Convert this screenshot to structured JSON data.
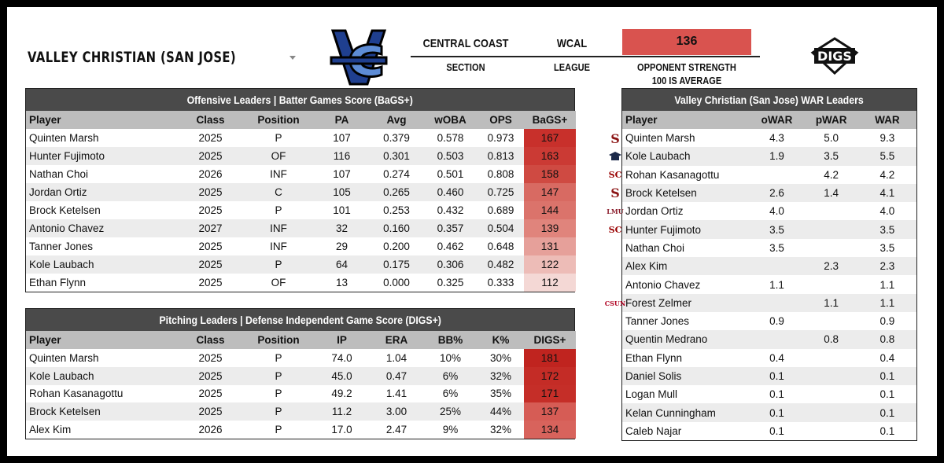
{
  "header": {
    "team_name": "Valley Christian (San Jose)",
    "section_value": "CENTRAL COAST",
    "section_label": "SECTION",
    "league_value": "WCAL",
    "league_label": "LEAGUE",
    "strength_value": "136",
    "strength_label_1": "OPPONENT STRENGTH",
    "strength_label_2": "100 IS AVERAGE",
    "brand_logo_text": "DIGS",
    "colors": {
      "school_blue": "#1f3f8f",
      "strength_red": "#d9534f",
      "title_bar": "#4a4a4a",
      "header_gray": "#bdbdbd"
    }
  },
  "offense": {
    "title": "Offensive Leaders | Batter Games Score (BaGS+)",
    "columns": [
      "Player",
      "Class",
      "Position",
      "PA",
      "Avg",
      "wOBA",
      "OPS",
      "BaGS+"
    ],
    "rows": [
      [
        "Quinten Marsh",
        "2025",
        "P",
        "107",
        "0.379",
        "0.578",
        "0.973",
        "167"
      ],
      [
        "Hunter Fujimoto",
        "2025",
        "OF",
        "116",
        "0.301",
        "0.503",
        "0.813",
        "163"
      ],
      [
        "Nathan Choi",
        "2026",
        "INF",
        "107",
        "0.274",
        "0.501",
        "0.808",
        "158"
      ],
      [
        "Jordan Ortiz",
        "2025",
        "C",
        "105",
        "0.265",
        "0.460",
        "0.725",
        "147"
      ],
      [
        "Brock Ketelsen",
        "2025",
        "P",
        "101",
        "0.253",
        "0.432",
        "0.689",
        "144"
      ],
      [
        "Antonio Chavez",
        "2027",
        "INF",
        "32",
        "0.160",
        "0.357",
        "0.504",
        "139"
      ],
      [
        "Tanner Jones",
        "2025",
        "INF",
        "29",
        "0.200",
        "0.462",
        "0.648",
        "131"
      ],
      [
        "Kole Laubach",
        "2025",
        "P",
        "64",
        "0.175",
        "0.306",
        "0.482",
        "122"
      ],
      [
        "Ethan Flynn",
        "2025",
        "OF",
        "13",
        "0.000",
        "0.325",
        "0.333",
        "112"
      ]
    ],
    "score_colors": [
      "#c8302b",
      "#cb3a34",
      "#cf4a42",
      "#d86a62",
      "#db736b",
      "#e0847c",
      "#e6a09a",
      "#edbcb7",
      "#f4d8d5"
    ]
  },
  "pitching": {
    "title": "Pitching Leaders | Defense Independent Game Score (DIGS+)",
    "columns": [
      "Player",
      "Class",
      "Position",
      "IP",
      "ERA",
      "BB%",
      "K%",
      "DIGS+"
    ],
    "rows": [
      [
        "Quinten Marsh",
        "2025",
        "P",
        "74.0",
        "1.04",
        "10%",
        "30%",
        "181"
      ],
      [
        "Kole Laubach",
        "2025",
        "P",
        "45.0",
        "0.47",
        "6%",
        "32%",
        "172"
      ],
      [
        "Rohan Kasanagottu",
        "2025",
        "P",
        "49.2",
        "1.41",
        "6%",
        "35%",
        "171"
      ],
      [
        "Brock Ketelsen",
        "2025",
        "P",
        "11.2",
        "3.00",
        "25%",
        "44%",
        "137"
      ],
      [
        "Alex Kim",
        "2026",
        "P",
        "17.0",
        "2.47",
        "9%",
        "32%",
        "134"
      ]
    ],
    "score_colors": [
      "#c0241f",
      "#c42c26",
      "#c52e28",
      "#d65c55",
      "#d8635c"
    ]
  },
  "war": {
    "title": "Valley Christian (San Jose) WAR Leaders",
    "columns": [
      "Player",
      "oWAR",
      "pWAR",
      "WAR"
    ],
    "rows": [
      [
        "Quinten Marsh",
        "4.3",
        "5.0",
        "9.3"
      ],
      [
        "Kole Laubach",
        "1.9",
        "3.5",
        "5.5"
      ],
      [
        "Rohan Kasanagottu",
        "",
        "4.2",
        "4.2"
      ],
      [
        "Brock Ketelsen",
        "2.6",
        "1.4",
        "4.1"
      ],
      [
        "Jordan Ortiz",
        "4.0",
        "",
        "4.0"
      ],
      [
        "Hunter Fujimoto",
        "3.5",
        "",
        "3.5"
      ],
      [
        "Nathan Choi",
        "3.5",
        "",
        "3.5"
      ],
      [
        "Alex Kim",
        "",
        "2.3",
        "2.3"
      ],
      [
        "Antonio Chavez",
        "1.1",
        "",
        "1.1"
      ],
      [
        "Forest Zelmer",
        "",
        "1.1",
        "1.1"
      ],
      [
        "Tanner Jones",
        "0.9",
        "",
        "0.9"
      ],
      [
        "Quentin Medrano",
        "",
        "0.8",
        "0.8"
      ],
      [
        "Ethan Flynn",
        "0.4",
        "",
        "0.4"
      ],
      [
        "Daniel Solis",
        "0.1",
        "",
        "0.1"
      ],
      [
        "Logan Mull",
        "0.1",
        "",
        "0.1"
      ],
      [
        "Kelan Cunningham",
        "0.1",
        "",
        "0.1"
      ],
      [
        "Caleb Najar",
        "0.1",
        "",
        "0.1"
      ]
    ],
    "college_icons": [
      {
        "row": 0,
        "icon": "stanford-logo-icon",
        "text": "S",
        "color": "#8c1515"
      },
      {
        "row": 1,
        "icon": "college-cap-icon",
        "text": "",
        "color": "#1c2a4a"
      },
      {
        "row": 2,
        "icon": "usc-logo-icon",
        "text": "SC",
        "color": "#990000"
      },
      {
        "row": 3,
        "icon": "stanford-logo-icon",
        "text": "S",
        "color": "#8c1515"
      },
      {
        "row": 4,
        "icon": "lmu-logo-icon",
        "text": "LMU",
        "color": "#8a1c2b"
      },
      {
        "row": 5,
        "icon": "usc-logo-icon",
        "text": "SC",
        "color": "#990000"
      },
      {
        "row": 9,
        "icon": "csun-logo-icon",
        "text": "CSUN",
        "color": "#b00020"
      }
    ]
  }
}
